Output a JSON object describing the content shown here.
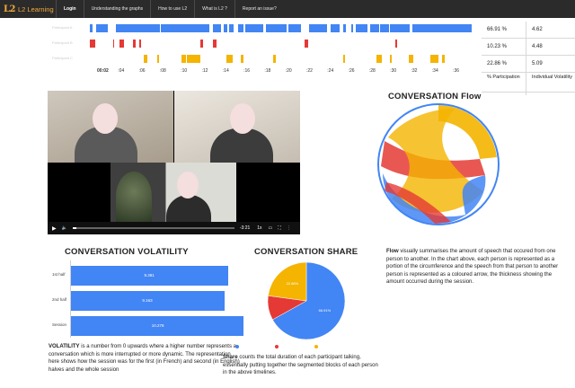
{
  "nav": {
    "brand_logo": "L2",
    "brand_name": "L2 Learning",
    "items": [
      "Login",
      "Understanding the graphs",
      "How to use L2",
      "What is L2 ?",
      "Report an issue?"
    ]
  },
  "timelines": {
    "rows": [
      {
        "label": "Participant A",
        "color": "#4285f4"
      },
      {
        "label": "Participant B",
        "color": "#e53935"
      },
      {
        "label": "Participant C",
        "color": "#f4b400"
      }
    ],
    "ticks": [
      "00:02",
      ":04",
      ":06",
      ":08",
      ":10",
      ":12",
      ":14",
      ":16",
      ":18",
      ":20",
      ":22",
      ":24",
      ":26",
      ":28",
      ":30",
      ":32",
      ":34",
      ":36"
    ]
  },
  "stats": {
    "rows": [
      {
        "participation": "66.91 %",
        "volatility": "4.62"
      },
      {
        "participation": "10.23 %",
        "volatility": "4.48"
      },
      {
        "participation": "22.86 %",
        "volatility": "5.09"
      }
    ],
    "header_participation": "% Participation",
    "header_volatility": "Individual Volatility"
  },
  "video": {
    "time": "-3:21",
    "speed": "1x"
  },
  "flow": {
    "title": "CONVERSATION Flow",
    "text_bold": "Flow",
    "text": " visually summarises the amount of speech that occured from one person to another. In the chart above, each person is represented as a portion of the circumference and the speech from that person to another person is represented as a coloured arrow, the thickness showing the amount occurred during the session."
  },
  "volatility": {
    "title": "CONVERSATION VOLATILITY",
    "text_bold": "VOLATILITY",
    "text": " is a number from 0 upwards where a higher number represents a conversation which is more interrupted or more dynamic. The representation here shows how the session was for the first (in French) and second (in English) halves and the whole session"
  },
  "share": {
    "title": "CONVERSATION SHARE",
    "text_bold": "Share",
    "text": " counts the total duration of each participant talking, essentially putting together the segmented blocks of each person in the above timelines."
  },
  "chart_data": [
    {
      "type": "bar",
      "orientation": "horizontal",
      "categories": [
        "1st half",
        "2nd half",
        "Session"
      ],
      "values": [
        9.391,
        9.163,
        10.278
      ],
      "value_labels": [
        "9.391",
        "9.163",
        "10.278"
      ],
      "xlim": [
        0,
        11
      ],
      "color": "#4285f4"
    },
    {
      "type": "pie",
      "labels": [
        "",
        "",
        ""
      ],
      "values": [
        66.91,
        10.23,
        22.86
      ],
      "value_labels": [
        "66.91%",
        "",
        "22.86%"
      ],
      "colors": [
        "#4285f4",
        "#e53935",
        "#f4b400"
      ]
    }
  ]
}
